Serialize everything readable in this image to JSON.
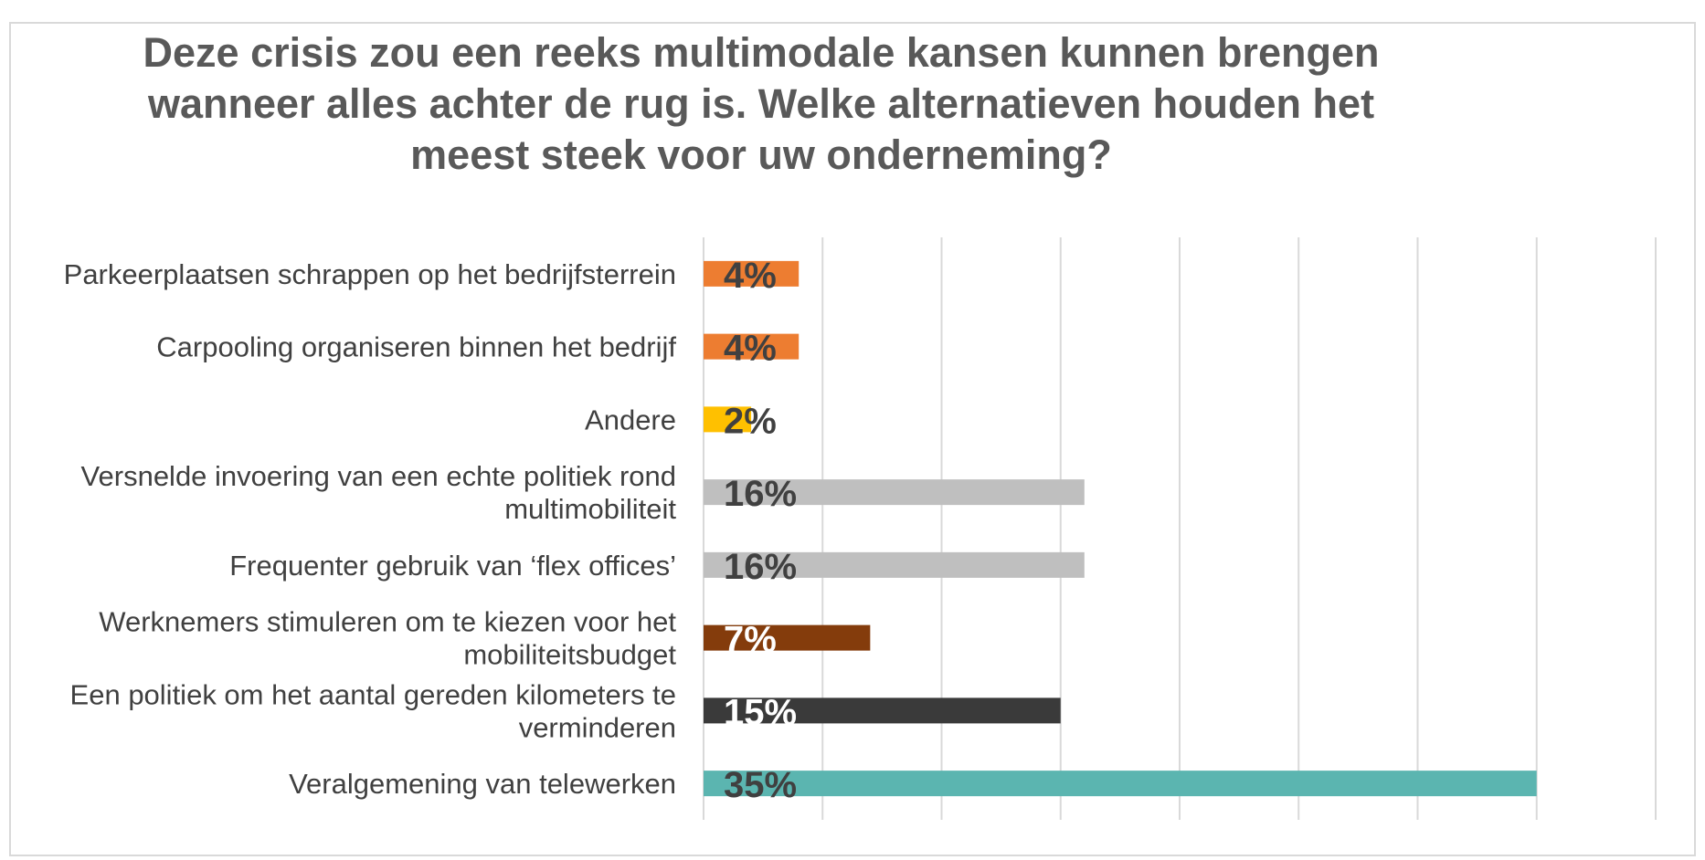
{
  "chart_data": {
    "type": "bar",
    "orientation": "horizontal",
    "title": "Deze crisis zou een reeks multimodale kansen kunnen brengen wanneer alles achter de rug is. Welke alternatieven houden het meest steek voor uw onderneming?",
    "title_lines": [
      "Deze crisis zou een reeks multimodale kansen kunnen brengen",
      "wanneer alles achter de rug is. Welke alternatieven houden het",
      "meest steek voor uw onderneming?"
    ],
    "categories": [
      "Parkeerplaatsen schrappen op het bedrijfsterrein",
      "Carpooling organiseren binnen het bedrijf",
      "Andere",
      "Versnelde invoering van een echte politiek rond multimobiliteit",
      "Frequenter gebruik van ‘flex offices’",
      "Werknemers stimuleren om te kiezen voor het mobiliteitsbudget",
      "Een politiek om het aantal gereden kilometers te verminderen",
      "Veralgemening van telewerken"
    ],
    "category_lines": [
      [
        "Parkeerplaatsen schrappen op het bedrijfsterrein"
      ],
      [
        "Carpooling organiseren binnen het bedrijf"
      ],
      [
        "Andere"
      ],
      [
        "Versnelde invoering van een echte politiek rond",
        "multimobiliteit"
      ],
      [
        "Frequenter gebruik van ‘flex offices’"
      ],
      [
        "Werknemers stimuleren om te kiezen voor het",
        "mobiliteitsbudget"
      ],
      [
        "Een politiek om het aantal gereden kilometers te",
        "verminderen"
      ],
      [
        "Veralgemening van telewerken"
      ]
    ],
    "values": [
      4,
      4,
      2,
      16,
      16,
      7,
      15,
      35
    ],
    "value_labels": [
      "4%",
      "4%",
      "2%",
      "16%",
      "16%",
      "7%",
      "15%",
      "35%"
    ],
    "colors": [
      "#ED7D31",
      "#ED7D31",
      "#FFC000",
      "#BFBFBF",
      "#BFBFBF",
      "#843C0C",
      "#3A3A3A",
      "#5BB5B0"
    ],
    "label_colors": [
      "#404040",
      "#404040",
      "#404040",
      "#404040",
      "#404040",
      "#ffffff",
      "#ffffff",
      "#404040"
    ],
    "xlim": [
      0,
      40
    ],
    "grid": true,
    "legend": "none"
  }
}
